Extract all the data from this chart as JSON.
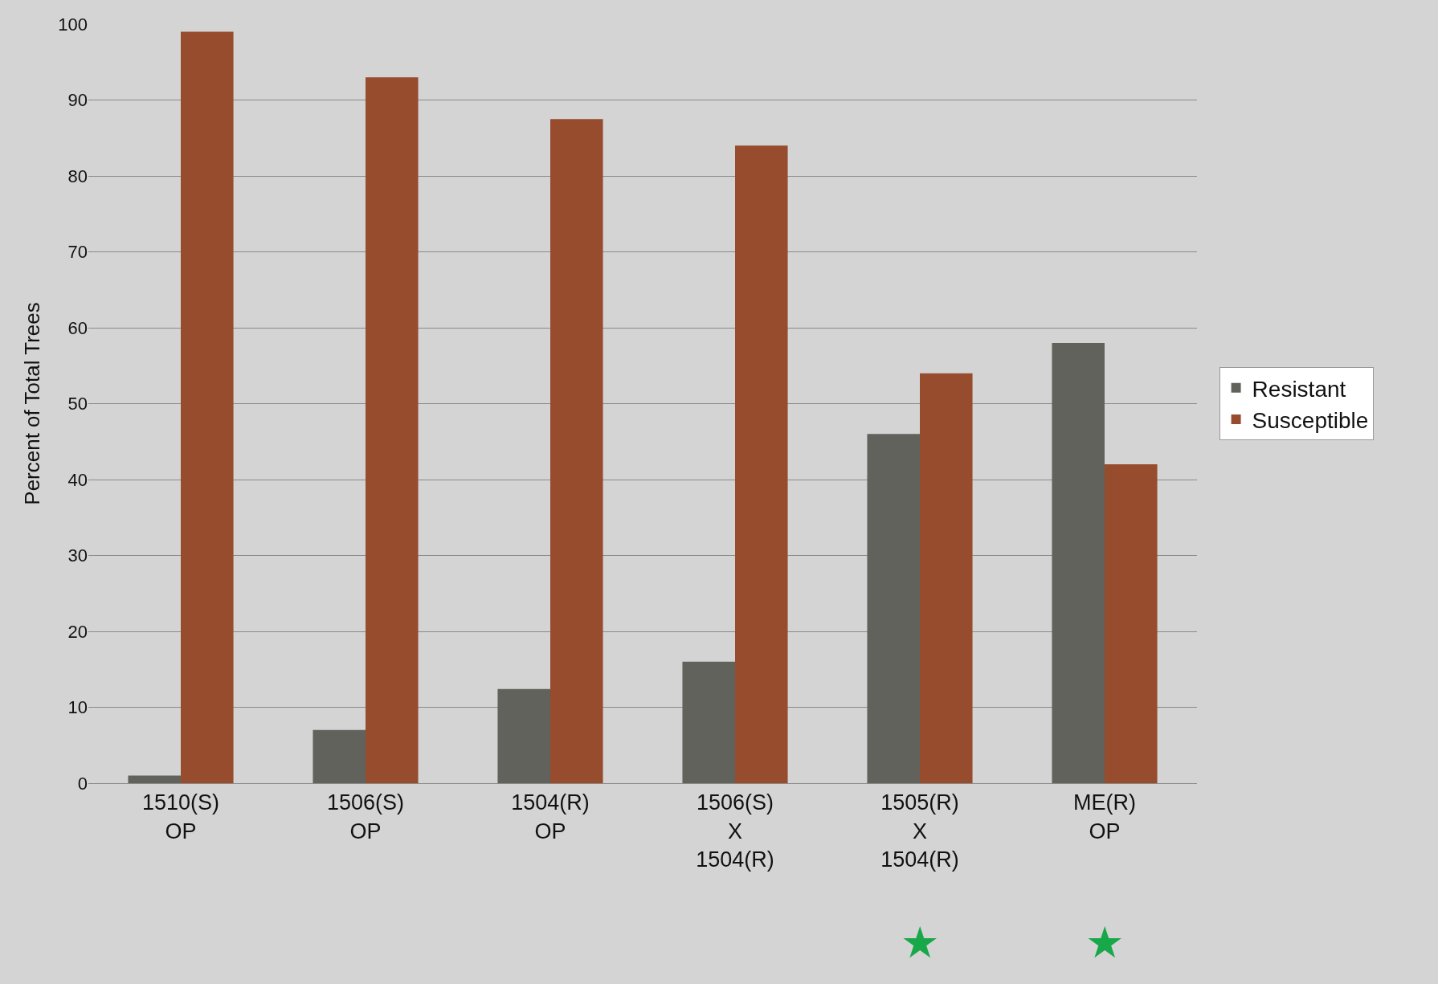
{
  "chart_data": {
    "type": "bar",
    "ylabel": "Percent of Total Trees",
    "categories": [
      "1510(S)\nOP",
      "1506(S)\nOP",
      "1504(R)\nOP",
      "1506(S)\nX\n1504(R)",
      "1505(R)\nX\n1504(R)",
      "ME(R)\nOP"
    ],
    "series": [
      {
        "name": "Resistant",
        "color": "#62625d",
        "values": [
          1,
          7,
          12.4,
          16,
          46,
          58
        ]
      },
      {
        "name": "Susceptible",
        "color": "#964c2d",
        "values": [
          99,
          93,
          87.5,
          84,
          54,
          42
        ]
      }
    ],
    "ylim": [
      0,
      100
    ],
    "yticks": [
      0,
      10,
      20,
      30,
      40,
      50,
      60,
      70,
      80,
      90,
      100
    ],
    "grid": "y",
    "legend": "right",
    "annotations": [
      "★",
      "★"
    ]
  }
}
